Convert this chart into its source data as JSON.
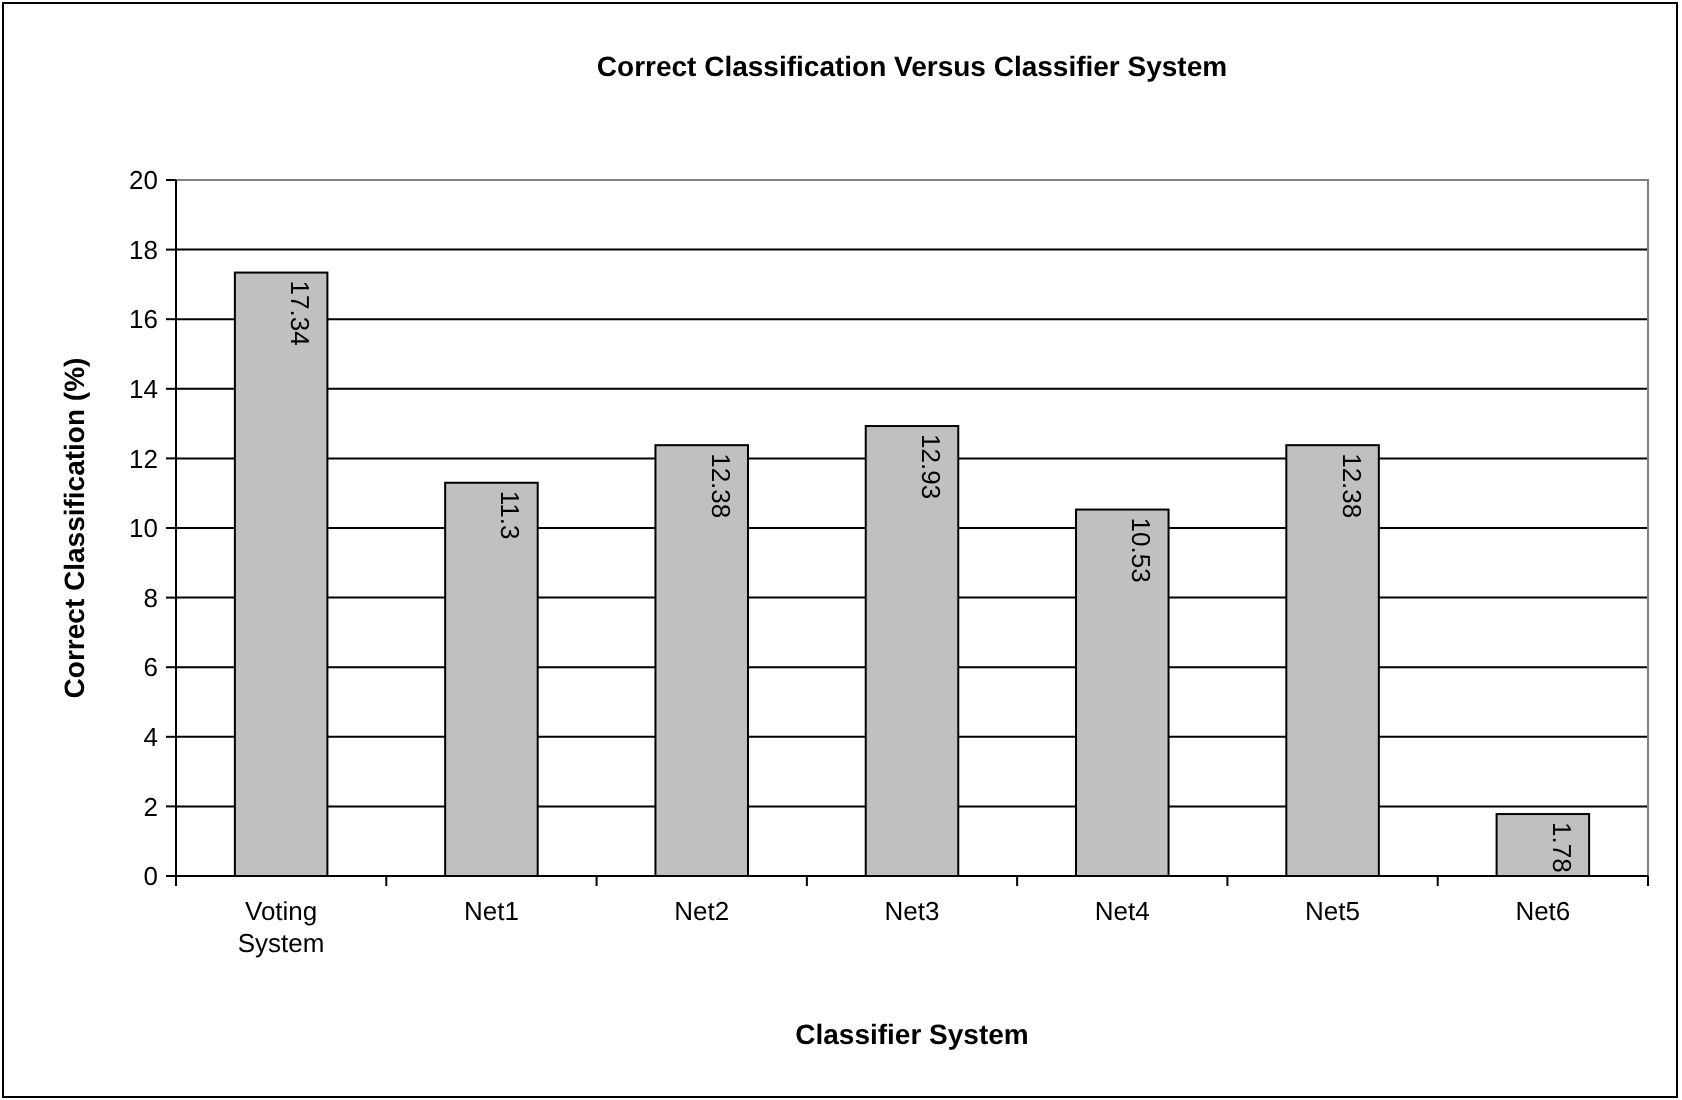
{
  "chart_data": {
    "type": "bar",
    "title": "Correct Classification Versus Classifier System",
    "xlabel": "Classifier System",
    "ylabel": "Correct Classification (%)",
    "categories": [
      "Voting System",
      "Net1",
      "Net2",
      "Net3",
      "Net4",
      "Net5",
      "Net6"
    ],
    "values": [
      17.34,
      11.3,
      12.38,
      12.93,
      10.53,
      12.38,
      1.78
    ],
    "color": "#c0c0c0",
    "ylim": [
      0,
      20
    ],
    "yticks": [
      0,
      2,
      4,
      6,
      8,
      10,
      12,
      14,
      16,
      18,
      20
    ],
    "grid": "y",
    "data_labels": true
  }
}
